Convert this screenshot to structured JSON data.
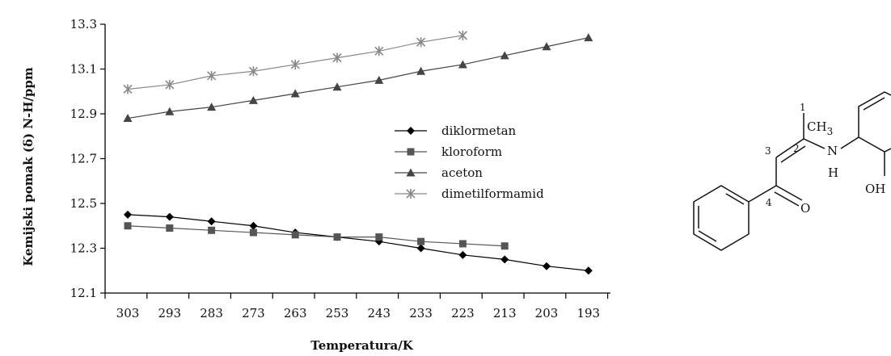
{
  "chart_data": {
    "type": "line",
    "title": "",
    "xlabel": "Temperatura/K",
    "ylabel": "Kemijski pomak (δ) N-H/ppm",
    "x": [
      303,
      293,
      283,
      273,
      263,
      253,
      243,
      233,
      223,
      213,
      203,
      193
    ],
    "x_tick_labels": [
      "303",
      "293",
      "283",
      "273",
      "263",
      "253",
      "243",
      "233",
      "223",
      "213",
      "203",
      "193"
    ],
    "y_tick_labels": [
      "12.1",
      "12.3",
      "12.5",
      "12.7",
      "12.9",
      "13.1",
      "13.3"
    ],
    "xlim": [
      303,
      193
    ],
    "ylim": [
      12.1,
      13.3
    ],
    "grid": false,
    "legend_position": "center",
    "series": [
      {
        "name": "diklormetan",
        "marker": "diamond",
        "color": "#000000",
        "values": [
          12.45,
          12.44,
          12.42,
          12.4,
          12.37,
          12.35,
          12.33,
          12.3,
          12.27,
          12.25,
          12.22,
          12.2
        ]
      },
      {
        "name": "kloroform",
        "marker": "square",
        "color": "#555555",
        "values": [
          12.4,
          12.39,
          12.38,
          12.37,
          12.36,
          12.35,
          12.35,
          12.33,
          12.32,
          12.31,
          null,
          null
        ]
      },
      {
        "name": "aceton",
        "marker": "triangle",
        "color": "#444444",
        "values": [
          12.88,
          12.91,
          12.93,
          12.96,
          12.99,
          13.02,
          13.05,
          13.09,
          13.12,
          13.16,
          13.2,
          13.24
        ]
      },
      {
        "name": "dimetilformamid",
        "marker": "star",
        "color": "#888888",
        "values": [
          13.01,
          13.03,
          13.07,
          13.09,
          13.12,
          13.15,
          13.18,
          13.22,
          13.25,
          null,
          null,
          null
        ]
      }
    ]
  },
  "molecule": {
    "name": "molecule-structure",
    "labels": {
      "n1": "1",
      "n2": "2",
      "n3": "3",
      "n4": "4",
      "ch3": "CH",
      "ch3_sub": "3",
      "n": "N",
      "h": "H",
      "o": "O",
      "oh": "OH"
    }
  }
}
